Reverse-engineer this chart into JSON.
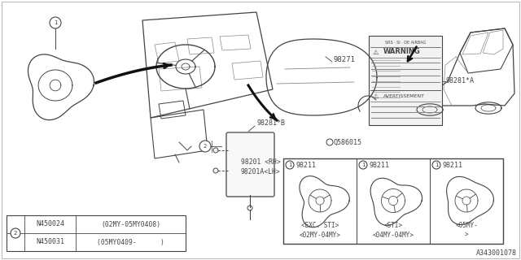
{
  "bg_color": "#ffffff",
  "line_color": "#444444",
  "light_line": "#888888",
  "diagram_id": "A343001078",
  "bolt_table_rows": [
    [
      "N450024",
      "(02MY-05MY0408)"
    ],
    [
      "N450031",
      "(05MY0409-      )"
    ]
  ]
}
